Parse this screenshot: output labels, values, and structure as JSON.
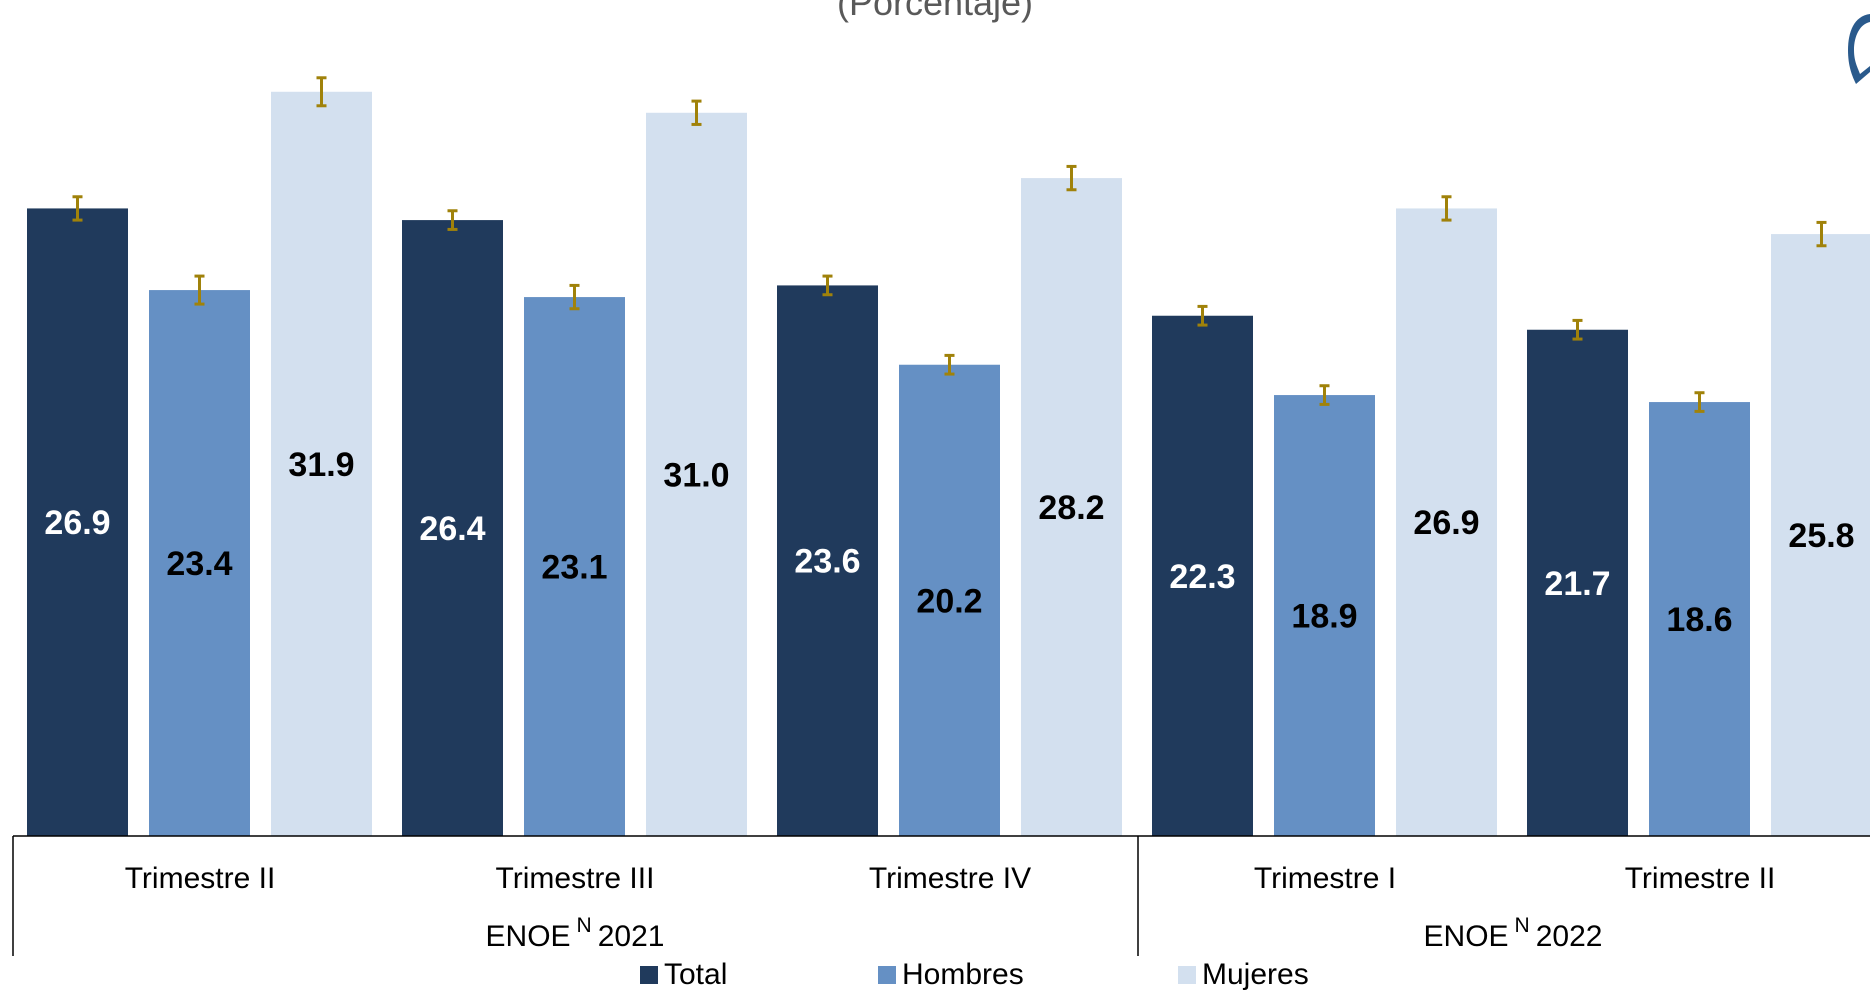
{
  "subtitle": "(Porcentaje)",
  "colors": {
    "total": "#203A5C",
    "hombres": "#6590C4",
    "mujeres": "#D3E0EF",
    "error_bar": "#A0820A"
  },
  "legend": {
    "total": "Total",
    "hombres": "Hombres",
    "mujeres": "Mujeres"
  },
  "chart_data": {
    "type": "bar",
    "ylim": [
      0,
      36
    ],
    "groups": [
      {
        "label": "ENOE",
        "sup": "N",
        "year": "2021",
        "categories": [
          "Trimestre II",
          "Trimestre III",
          "Trimestre IV"
        ]
      },
      {
        "label": "ENOE",
        "sup": "N",
        "year": "2022",
        "categories": [
          "Trimestre I",
          "Trimestre II"
        ]
      }
    ],
    "categories": [
      "Trimestre II",
      "Trimestre III",
      "Trimestre IV",
      "Trimestre I",
      "Trimestre II"
    ],
    "series": [
      {
        "name": "Total",
        "values": [
          26.9,
          26.4,
          23.6,
          22.3,
          21.7
        ],
        "error": [
          0.5,
          0.4,
          0.4,
          0.4,
          0.4
        ]
      },
      {
        "name": "Hombres",
        "values": [
          23.4,
          23.1,
          20.2,
          18.9,
          18.6
        ],
        "error": [
          0.6,
          0.5,
          0.4,
          0.4,
          0.4
        ]
      },
      {
        "name": "Mujeres",
        "values": [
          31.9,
          31.0,
          28.2,
          26.9,
          25.8
        ],
        "error": [
          0.6,
          0.5,
          0.5,
          0.5,
          0.5
        ]
      }
    ]
  }
}
